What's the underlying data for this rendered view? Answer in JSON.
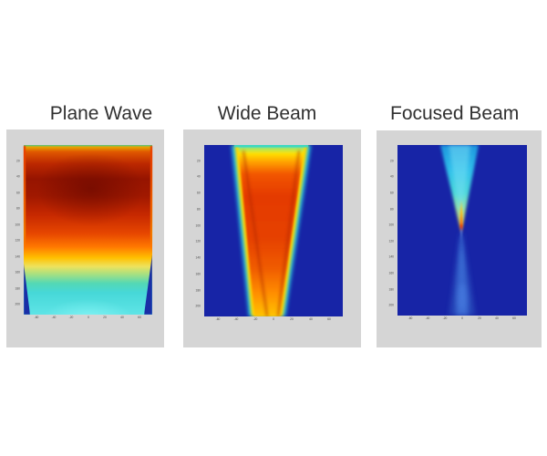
{
  "colors": {
    "page_background": "#ffffff",
    "panel_background": "#d5d5d5",
    "plot_background_blue": "#1724a6",
    "title_text": "#303030",
    "tick_text": "#4a4a4a",
    "colormap_peak_red": "#961400",
    "colormap_mid_yellow": "#ffc000",
    "colormap_cyan": "#46d8d8"
  },
  "chart_data": [
    {
      "type": "heatmap",
      "title": "Plane Wave",
      "colormap": "jet",
      "x_ticks": [
        -60,
        -40,
        -20,
        0,
        20,
        40,
        60
      ],
      "y_ticks": [
        20,
        40,
        60,
        80,
        100,
        120,
        140,
        160,
        180,
        200
      ],
      "x_range": [
        -75,
        75
      ],
      "y_range": [
        0,
        212
      ],
      "grid": false,
      "legend": false,
      "description": "Uniform plane-wave pressure field filling the whole aperture: dark-red high-intensity lobe centered near 25% depth, decaying smoothly with depth through red, orange, yellow and green to cyan at maximum depth; thin red fringes along the lateral edges and dark-blue shadow wedges in the bottom corners."
    },
    {
      "type": "heatmap",
      "title": "Wide Beam",
      "colormap": "jet",
      "x_ticks": [
        -60,
        -40,
        -20,
        0,
        20,
        40,
        60
      ],
      "y_ticks": [
        20,
        40,
        60,
        80,
        100,
        120,
        140,
        160,
        180,
        200
      ],
      "x_range": [
        -75,
        75
      ],
      "y_range": [
        0,
        212
      ],
      "grid": false,
      "legend": false,
      "beam_extent_fraction": {
        "top": [
          0.24,
          0.73
        ],
        "bottom": [
          0.36,
          0.55
        ]
      },
      "description": "Unfocused wide beam on a dark-blue background: a red-orange column spanning about 24-73% of the lateral axis at the surface, tapering to about 36-55% at full depth, rimmed by yellow then cyan fringes, with darker red shear streaks along the converging flanks and a cyan strip at the transducer face."
    },
    {
      "type": "heatmap",
      "title": "Focused Beam",
      "colormap": "jet",
      "x_ticks": [
        -60,
        -40,
        -20,
        0,
        20,
        40,
        60
      ],
      "y_ticks": [
        20,
        40,
        60,
        80,
        100,
        120,
        140,
        160,
        180,
        200
      ],
      "x_range": [
        -75,
        75
      ],
      "y_range": [
        0,
        212
      ],
      "grid": false,
      "legend": false,
      "focus_fraction": {
        "x": 0.49,
        "depth": 0.5
      },
      "description": "Focused beam on a dark-blue background: a cyan cone converging from about 33-63% of the aperture down to a bright yellow-orange-red focal spot at roughly half depth, then a faint diverging blue cone below the focus with a dim light-blue tail near the bottom."
    }
  ]
}
